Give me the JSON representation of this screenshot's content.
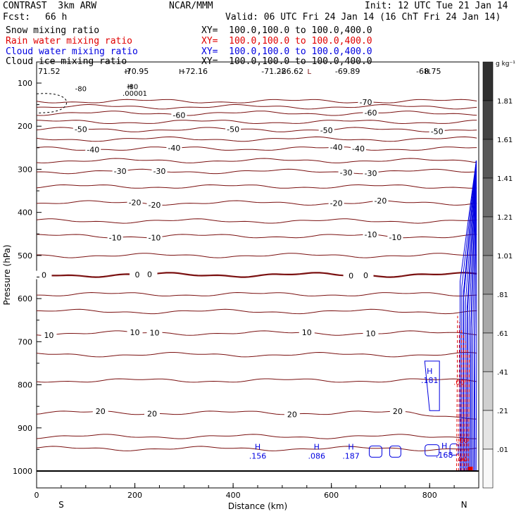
{
  "header": {
    "model": "CONTRAST  3km ARW",
    "org": "NCAR/MMM",
    "init": "Init: 12 UTC Tue 21 Jan 14",
    "fcst_label": "Fcst:",
    "fcst_value": "66 h",
    "valid": "Valid: 06 UTC Fri 24 Jan 14 (16 ChT Fri 24 Jan 14)"
  },
  "fields": [
    {
      "name": "Snow mixing ratio",
      "xy": "XY=  100.0,100.0 to 100.0,400.0",
      "color": "#000000"
    },
    {
      "name": "Rain water mixing ratio",
      "xy": "XY=  100.0,100.0 to 100.0,400.0",
      "color": "#e00000"
    },
    {
      "name": "Cloud water mixing ratio",
      "xy": "XY=  100.0,100.0 to 100.0,400.0",
      "color": "#0000e0"
    },
    {
      "name": "Cloud ice mixing ratio",
      "xy": "XY=  100.0,100.0 to 100.0,400.0",
      "color": "#000000"
    }
  ],
  "colors": {
    "temp": "#7a1010",
    "rain": "#e00000",
    "cloud": "#0000e0"
  },
  "chart_data": {
    "type": "cross-section",
    "xlabel": "Distance (km)",
    "ylabel": "Pressure (hPa)",
    "xlim": [
      0,
      900
    ],
    "ylim": [
      1000,
      50
    ],
    "x_ticks": [
      0,
      200,
      400,
      600,
      800
    ],
    "y_ticks": [
      100,
      200,
      300,
      400,
      500,
      600,
      700,
      800,
      900,
      1000
    ],
    "x_end_labels": {
      "left": "S",
      "right": "N"
    },
    "colorbar": {
      "unit": "g kg⁻¹",
      "labels": [
        "1.81",
        "1.61",
        "1.41",
        "1.21",
        "1.01",
        ".81",
        ".61",
        ".41",
        ".21",
        ".01"
      ]
    },
    "temperature_contours": [
      {
        "level": -70,
        "p": 142,
        "labels": [
          {
            "x": 670,
            "text": "-70"
          }
        ]
      },
      {
        "level": -60,
        "p": 170,
        "labels": [
          {
            "x": 290,
            "text": "-60"
          },
          {
            "x": 680,
            "text": "-60"
          }
        ]
      },
      {
        "level": -50,
        "p": 208,
        "labels": [
          {
            "x": 90,
            "text": "-50"
          },
          {
            "x": 400,
            "text": "-50"
          },
          {
            "x": 590,
            "text": "-50"
          },
          {
            "x": 815,
            "text": "-50"
          }
        ]
      },
      {
        "level": -40,
        "p": 252,
        "labels": [
          {
            "x": 115,
            "text": "-40"
          },
          {
            "x": 280,
            "text": "-40"
          },
          {
            "x": 610,
            "text": "-40"
          },
          {
            "x": 655,
            "text": "-40"
          }
        ]
      },
      {
        "level": -30,
        "p": 305,
        "labels": [
          {
            "x": 170,
            "text": "-30"
          },
          {
            "x": 250,
            "text": "-30"
          },
          {
            "x": 630,
            "text": "-30"
          },
          {
            "x": 680,
            "text": "-30"
          }
        ]
      },
      {
        "level": -20,
        "p": 378,
        "labels": [
          {
            "x": 200,
            "text": "-20"
          },
          {
            "x": 240,
            "text": "-20"
          },
          {
            "x": 610,
            "text": "-20"
          },
          {
            "x": 700,
            "text": "-20"
          }
        ]
      },
      {
        "level": -10,
        "p": 455,
        "labels": [
          {
            "x": 160,
            "text": "-10"
          },
          {
            "x": 240,
            "text": "-10"
          },
          {
            "x": 680,
            "text": "-10"
          },
          {
            "x": 730,
            "text": "-10"
          }
        ]
      },
      {
        "level": 0,
        "p": 545,
        "labels": [
          {
            "x": 15,
            "text": "0"
          },
          {
            "x": 205,
            "text": "0"
          },
          {
            "x": 230,
            "text": "0"
          },
          {
            "x": 640,
            "text": "0"
          },
          {
            "x": 670,
            "text": "0"
          }
        ]
      },
      {
        "level": 10,
        "p": 680,
        "labels": [
          {
            "x": 25,
            "text": "10"
          },
          {
            "x": 200,
            "text": "10"
          },
          {
            "x": 240,
            "text": "10"
          },
          {
            "x": 550,
            "text": "10"
          },
          {
            "x": 680,
            "text": "10"
          }
        ]
      },
      {
        "level": 20,
        "p": 865,
        "labels": [
          {
            "x": 130,
            "text": "20"
          },
          {
            "x": 235,
            "text": "20"
          },
          {
            "x": 520,
            "text": "20"
          },
          {
            "x": 735,
            "text": "20"
          }
        ]
      }
    ],
    "top_values": [
      {
        "x": 0,
        "text": "71.52"
      },
      {
        "x": 200,
        "text": "-70.95"
      },
      {
        "x": 320,
        "text": "-72.16"
      },
      {
        "x": 480,
        "text": "-71.22"
      },
      {
        "x": 515,
        "text": "-86.62"
      },
      {
        "x": 630,
        "text": "-69.89"
      },
      {
        "x": 795,
        "text": "-68.75"
      }
    ],
    "extrema_markers": [
      {
        "x": 190,
        "p": 107,
        "text": "H"
      },
      {
        "x": 555,
        "p": 72,
        "text": "L"
      },
      {
        "x": 185,
        "p": 72,
        "text": "H"
      },
      {
        "x": 295,
        "p": 72,
        "text": "H"
      },
      {
        "x": 795,
        "p": 72,
        "text": "H"
      },
      {
        "x": 195,
        "p": 107,
        "text": "-80"
      },
      {
        "x": 90,
        "p": 112,
        "text": "-80"
      },
      {
        "x": 200,
        "p": 123,
        "text": ".00001"
      }
    ],
    "cloud_water_maxima": [
      {
        "x": 450,
        "p": 950,
        "text": "H",
        "value": ".156"
      },
      {
        "x": 570,
        "p": 950,
        "text": "H",
        "value": ".086"
      },
      {
        "x": 640,
        "p": 950,
        "text": "H",
        "value": ".187"
      },
      {
        "x": 830,
        "p": 948,
        "text": "H",
        "value": ".168"
      },
      {
        "x": 800,
        "p": 775,
        "text": "H",
        "value": ".181"
      }
    ],
    "rain_labels": [
      {
        "x": 860,
        "p": 800,
        "text": ".00"
      },
      {
        "x": 867,
        "p": 935,
        "text": ".00"
      },
      {
        "x": 865,
        "p": 978,
        "text": ".00"
      }
    ]
  }
}
